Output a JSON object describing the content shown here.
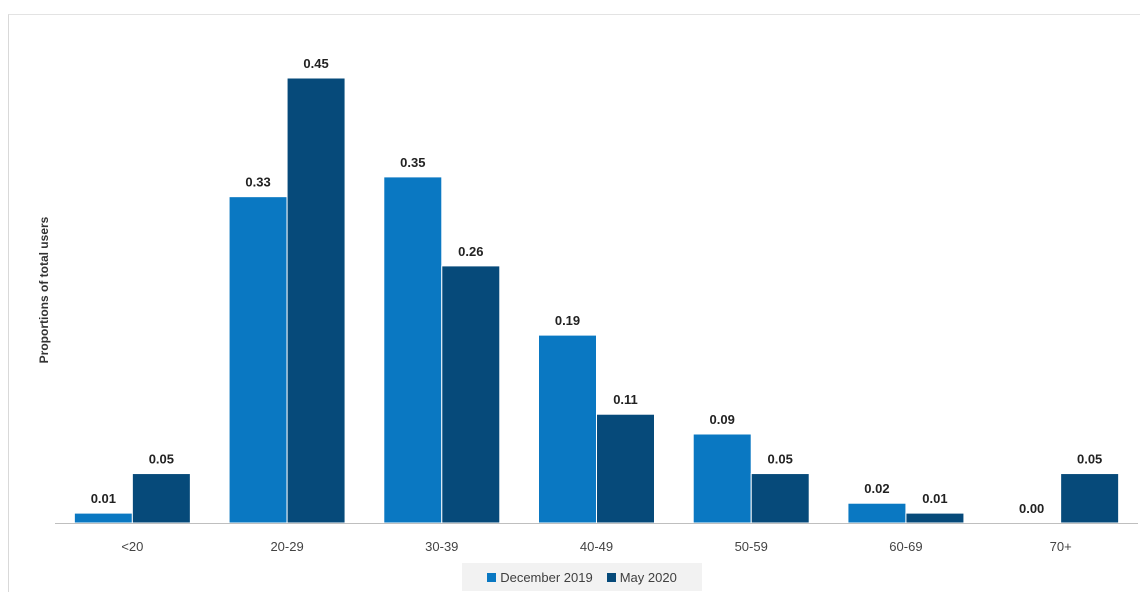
{
  "chart_data": {
    "type": "bar",
    "title": "",
    "xlabel": "",
    "ylabel": "Proportions of total users",
    "categories": [
      "<20",
      "20-29",
      "30-39",
      "40-49",
      "50-59",
      "60-69",
      "70+"
    ],
    "series": [
      {
        "name": "December 2019",
        "color": "#0a78c2",
        "values": [
          0.01,
          0.33,
          0.35,
          0.19,
          0.09,
          0.02,
          0.0
        ],
        "labels": [
          "0.01",
          "0.33",
          "0.35",
          "0.19",
          "0.09",
          "0.02",
          "0.00"
        ]
      },
      {
        "name": "May 2020",
        "color": "#064a7a",
        "values": [
          0.05,
          0.45,
          0.26,
          0.11,
          0.05,
          0.01,
          0.05
        ],
        "labels": [
          "0.05",
          "0.45",
          "0.26",
          "0.11",
          "0.05",
          "0.01",
          "0.05"
        ]
      }
    ],
    "ylim": [
      0,
      0.45
    ],
    "grid": false,
    "legend_position": "bottom-center"
  }
}
